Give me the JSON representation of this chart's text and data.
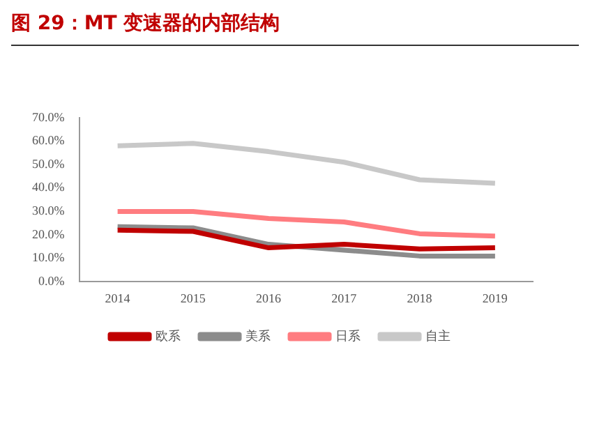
{
  "chart_data": {
    "type": "line",
    "title": "图 29：MT 变速器的内部结构",
    "categories": [
      "2014",
      "2015",
      "2016",
      "2017",
      "2018",
      "2019"
    ],
    "series": [
      {
        "name": "欧系",
        "color": "#c00000",
        "values": [
          22,
          21.5,
          14.5,
          16,
          14,
          14.5
        ]
      },
      {
        "name": "美系",
        "color": "#8c8c8c",
        "values": [
          23.5,
          23,
          16,
          13.5,
          11,
          11
        ]
      },
      {
        "name": "日系",
        "color": "#ff7c80",
        "values": [
          30,
          30,
          27,
          25.5,
          20.5,
          19.5
        ]
      },
      {
        "name": "自主",
        "color": "#c8c8c8",
        "values": [
          58,
          59,
          55.5,
          51,
          43.5,
          42
        ]
      }
    ],
    "ylim": [
      0,
      70
    ],
    "yticks": [
      {
        "value": 0,
        "label": "0.0%"
      },
      {
        "value": 10,
        "label": "10.0%"
      },
      {
        "value": 20,
        "label": "20.0%"
      },
      {
        "value": 30,
        "label": "30.0%"
      },
      {
        "value": 40,
        "label": "40.0%"
      },
      {
        "value": 50,
        "label": "50.0%"
      },
      {
        "value": 60,
        "label": "60.0%"
      },
      {
        "value": 70,
        "label": "70.0%"
      }
    ],
    "grid": false,
    "legend": "bottom",
    "marker": "none",
    "line_style": "solid"
  }
}
